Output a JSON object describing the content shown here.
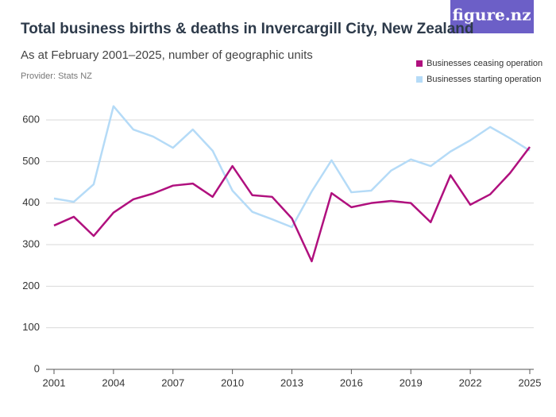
{
  "chart_data": {
    "type": "line",
    "title": "Total business births & deaths in Invercargill City, New Zealand",
    "subtitle": "As at February 2001–2025, number of geographic units",
    "source": "Provider: Stats NZ",
    "brand": "figure.nz",
    "x": [
      2001,
      2002,
      2003,
      2004,
      2005,
      2006,
      2007,
      2008,
      2009,
      2010,
      2011,
      2012,
      2013,
      2014,
      2015,
      2016,
      2017,
      2018,
      2019,
      2020,
      2021,
      2022,
      2023,
      2024,
      2025
    ],
    "series": [
      {
        "name": "Businesses ceasing operation",
        "color": "#b0107e",
        "values": [
          346,
          367,
          321,
          377,
          409,
          423,
          442,
          447,
          415,
          489,
          419,
          415,
          363,
          260,
          424,
          390,
          400,
          405,
          400,
          354,
          467,
          396,
          421,
          472,
          535
        ]
      },
      {
        "name": "Businesses starting operation",
        "color": "#b5dbf7",
        "values": [
          411,
          403,
          445,
          633,
          577,
          560,
          533,
          577,
          526,
          430,
          379,
          361,
          342,
          428,
          503,
          426,
          430,
          478,
          505,
          489,
          524,
          551,
          583,
          556,
          526
        ]
      }
    ],
    "xlim": [
      2001,
      2025
    ],
    "xticks": [
      2001,
      2004,
      2007,
      2010,
      2013,
      2016,
      2019,
      2022,
      2025
    ],
    "ylim": [
      0,
      600
    ],
    "yticks": [
      0,
      100,
      200,
      300,
      400,
      500,
      600
    ],
    "grid": true,
    "legend": "top-right"
  }
}
